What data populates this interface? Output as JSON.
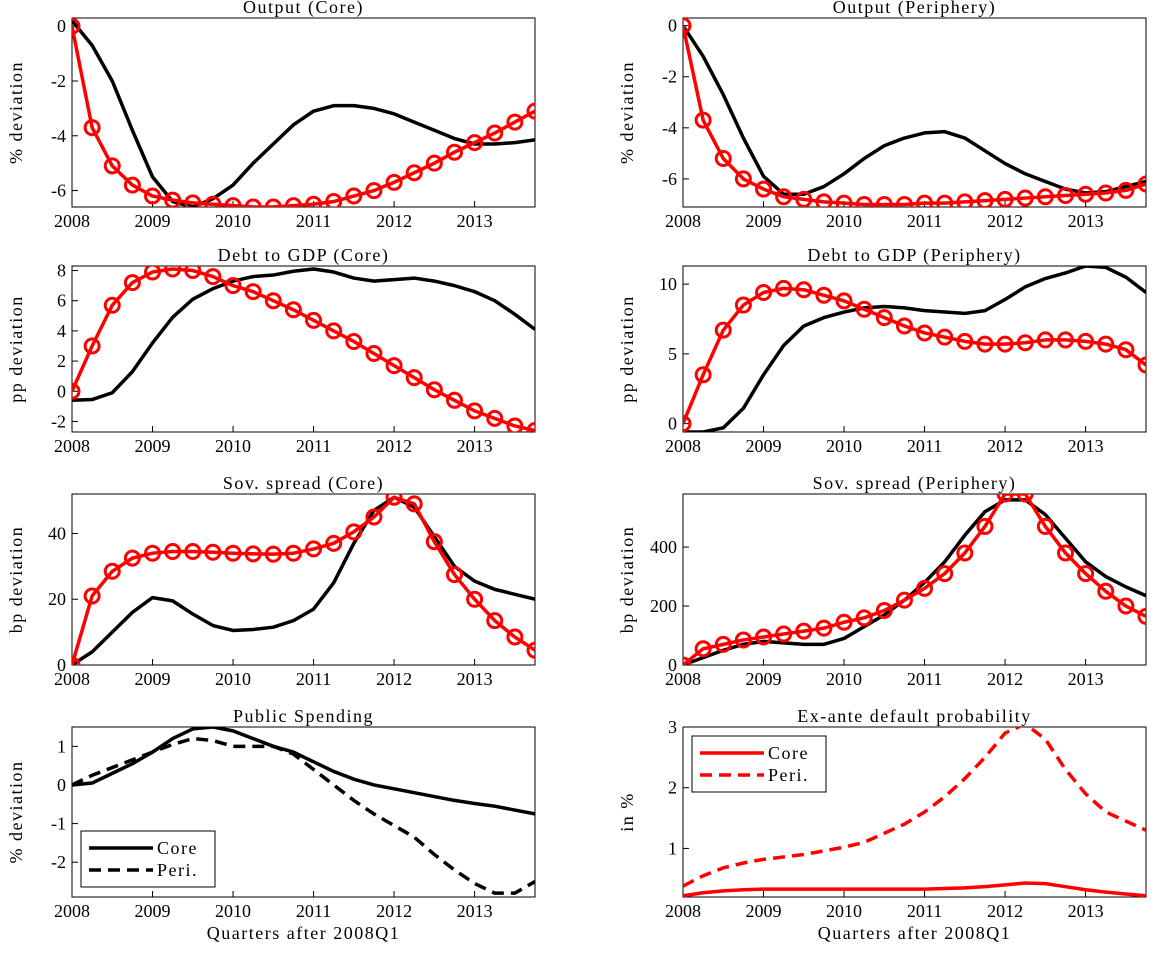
{
  "chart_data": [
    {
      "type": "line",
      "title": "Output (Core)",
      "ylabel": "% deviation",
      "x": [
        2008,
        2008.25,
        2008.5,
        2008.75,
        2009,
        2009.25,
        2009.5,
        2009.75,
        2010,
        2010.25,
        2010.5,
        2010.75,
        2011,
        2011.25,
        2011.5,
        2011.75,
        2012,
        2012.25,
        2012.5,
        2012.75,
        2013,
        2013.25,
        2013.5,
        2013.75
      ],
      "xlim": [
        2008,
        2013.75
      ],
      "xticks": [
        2008,
        2009,
        2010,
        2011,
        2012,
        2013
      ],
      "ylim": [
        -6.6,
        0.3
      ],
      "yticks": [
        -6,
        -4,
        -2,
        0
      ],
      "series": [
        {
          "color": "#000000",
          "values": [
            0.2,
            -0.7,
            -2.0,
            -3.8,
            -5.5,
            -6.4,
            -6.6,
            -6.3,
            -5.8,
            -5.0,
            -4.3,
            -3.6,
            -3.1,
            -2.9,
            -2.9,
            -3.0,
            -3.2,
            -3.5,
            -3.8,
            -4.1,
            -4.3,
            -4.3,
            -4.25,
            -4.15
          ]
        },
        {
          "color": "#ff0000",
          "marker": "o",
          "values": [
            0,
            -3.7,
            -5.1,
            -5.8,
            -6.2,
            -6.35,
            -6.45,
            -6.5,
            -6.55,
            -6.6,
            -6.6,
            -6.55,
            -6.5,
            -6.4,
            -6.2,
            -6.0,
            -5.7,
            -5.35,
            -5.0,
            -4.6,
            -4.25,
            -3.9,
            -3.5,
            -3.1
          ]
        }
      ]
    },
    {
      "type": "line",
      "title": "Output (Periphery)",
      "ylabel": "% deviation",
      "x": [
        2008,
        2008.25,
        2008.5,
        2008.75,
        2009,
        2009.25,
        2009.5,
        2009.75,
        2010,
        2010.25,
        2010.5,
        2010.75,
        2011,
        2011.25,
        2011.5,
        2011.75,
        2012,
        2012.25,
        2012.5,
        2012.75,
        2013,
        2013.25,
        2013.5,
        2013.75
      ],
      "xlim": [
        2008,
        2013.75
      ],
      "xticks": [
        2008,
        2009,
        2010,
        2011,
        2012,
        2013
      ],
      "ylim": [
        -7.1,
        0.3
      ],
      "yticks": [
        -6,
        -4,
        -2,
        0
      ],
      "series": [
        {
          "color": "#000000",
          "values": [
            0,
            -1.2,
            -2.7,
            -4.4,
            -5.9,
            -6.6,
            -6.6,
            -6.3,
            -5.8,
            -5.2,
            -4.7,
            -4.4,
            -4.2,
            -4.15,
            -4.4,
            -4.9,
            -5.4,
            -5.8,
            -6.1,
            -6.4,
            -6.55,
            -6.5,
            -6.3,
            -6.1
          ]
        },
        {
          "color": "#ff0000",
          "marker": "o",
          "values": [
            0,
            -3.7,
            -5.2,
            -6.0,
            -6.4,
            -6.7,
            -6.8,
            -6.9,
            -6.95,
            -7.0,
            -7.0,
            -7.0,
            -6.95,
            -6.95,
            -6.9,
            -6.85,
            -6.8,
            -6.75,
            -6.7,
            -6.65,
            -6.6,
            -6.55,
            -6.45,
            -6.2
          ]
        }
      ]
    },
    {
      "type": "line",
      "title": "Debt to GDP (Core)",
      "ylabel": "pp deviation",
      "x": [
        2008,
        2008.25,
        2008.5,
        2008.75,
        2009,
        2009.25,
        2009.5,
        2009.75,
        2010,
        2010.25,
        2010.5,
        2010.75,
        2011,
        2011.25,
        2011.5,
        2011.75,
        2012,
        2012.25,
        2012.5,
        2012.75,
        2013,
        2013.25,
        2013.5,
        2013.75
      ],
      "xlim": [
        2008,
        2013.75
      ],
      "xticks": [
        2008,
        2009,
        2010,
        2011,
        2012,
        2013
      ],
      "ylim": [
        -2.7,
        8.3
      ],
      "yticks": [
        -2,
        0,
        2,
        4,
        6,
        8
      ],
      "series": [
        {
          "color": "#000000",
          "values": [
            -0.6,
            -0.55,
            -0.1,
            1.3,
            3.2,
            4.9,
            6.1,
            6.8,
            7.3,
            7.6,
            7.7,
            7.95,
            8.1,
            7.9,
            7.5,
            7.3,
            7.4,
            7.5,
            7.3,
            7.0,
            6.6,
            6.0,
            5.1,
            4.1
          ]
        },
        {
          "color": "#ff0000",
          "marker": "o",
          "values": [
            0,
            3.0,
            5.7,
            7.2,
            7.9,
            8.1,
            8.0,
            7.6,
            7.0,
            6.6,
            6.0,
            5.4,
            4.7,
            4.0,
            3.3,
            2.5,
            1.7,
            0.9,
            0.1,
            -0.6,
            -1.3,
            -1.8,
            -2.3,
            -2.6
          ]
        }
      ]
    },
    {
      "type": "line",
      "title": "Debt to GDP (Periphery)",
      "ylabel": "pp deviation",
      "x": [
        2008,
        2008.25,
        2008.5,
        2008.75,
        2009,
        2009.25,
        2009.5,
        2009.75,
        2010,
        2010.25,
        2010.5,
        2010.75,
        2011,
        2011.25,
        2011.5,
        2011.75,
        2012,
        2012.25,
        2012.5,
        2012.75,
        2013,
        2013.25,
        2013.5,
        2013.75
      ],
      "xlim": [
        2008,
        2013.75
      ],
      "xticks": [
        2008,
        2009,
        2010,
        2011,
        2012,
        2013
      ],
      "ylim": [
        -0.6,
        11.3
      ],
      "yticks": [
        0,
        5,
        10
      ],
      "series": [
        {
          "color": "#000000",
          "values": [
            -0.6,
            -0.6,
            -0.3,
            1.1,
            3.5,
            5.6,
            7.0,
            7.6,
            8.0,
            8.3,
            8.4,
            8.3,
            8.1,
            8.0,
            7.9,
            8.1,
            8.9,
            9.8,
            10.4,
            10.8,
            11.3,
            11.2,
            10.5,
            9.4
          ]
        },
        {
          "color": "#ff0000",
          "marker": "o",
          "values": [
            0,
            3.5,
            6.7,
            8.5,
            9.4,
            9.7,
            9.6,
            9.2,
            8.8,
            8.2,
            7.6,
            7.0,
            6.5,
            6.2,
            5.9,
            5.7,
            5.7,
            5.8,
            6.0,
            6.0,
            5.9,
            5.7,
            5.3,
            4.2
          ]
        }
      ]
    },
    {
      "type": "line",
      "title": "Sov. spread (Core)",
      "ylabel": "bp deviation",
      "x": [
        2008,
        2008.25,
        2008.5,
        2008.75,
        2009,
        2009.25,
        2009.5,
        2009.75,
        2010,
        2010.25,
        2010.5,
        2010.75,
        2011,
        2011.25,
        2011.5,
        2011.75,
        2012,
        2012.25,
        2012.5,
        2012.75,
        2013,
        2013.25,
        2013.5,
        2013.75
      ],
      "xlim": [
        2008,
        2013.75
      ],
      "xticks": [
        2008,
        2009,
        2010,
        2011,
        2012,
        2013
      ],
      "ylim": [
        0,
        52
      ],
      "yticks": [
        0,
        20,
        40
      ],
      "series": [
        {
          "color": "#000000",
          "values": [
            0,
            4,
            10,
            16,
            20.5,
            19.5,
            15.5,
            12,
            10.5,
            10.8,
            11.5,
            13.5,
            17,
            25,
            37,
            47,
            51,
            48,
            39,
            30,
            25.5,
            23,
            21.5,
            20
          ]
        },
        {
          "color": "#ff0000",
          "marker": "o",
          "values": [
            0,
            21,
            28.5,
            32.5,
            34,
            34.5,
            34.5,
            34.3,
            34,
            33.8,
            33.7,
            34,
            35.3,
            37,
            40.5,
            45,
            51,
            49,
            37.5,
            27.5,
            20,
            13.5,
            8.5,
            4.5
          ]
        }
      ]
    },
    {
      "type": "line",
      "title": "Sov. spread (Periphery)",
      "ylabel": "bp deviation",
      "x": [
        2008,
        2008.25,
        2008.5,
        2008.75,
        2009,
        2009.25,
        2009.5,
        2009.75,
        2010,
        2010.25,
        2010.5,
        2010.75,
        2011,
        2011.25,
        2011.5,
        2011.75,
        2012,
        2012.25,
        2012.5,
        2012.75,
        2013,
        2013.25,
        2013.5,
        2013.75
      ],
      "xlim": [
        2008,
        2013.75
      ],
      "xticks": [
        2008,
        2009,
        2010,
        2011,
        2012,
        2013
      ],
      "ylim": [
        0,
        580
      ],
      "yticks": [
        0,
        200,
        400
      ],
      "series": [
        {
          "color": "#000000",
          "values": [
            0,
            25,
            50,
            70,
            80,
            75,
            70,
            70,
            90,
            130,
            170,
            220,
            280,
            350,
            440,
            520,
            560,
            560,
            510,
            430,
            350,
            300,
            265,
            235
          ]
        },
        {
          "color": "#ff0000",
          "marker": "o",
          "values": [
            0,
            55,
            70,
            85,
            95,
            105,
            115,
            125,
            145,
            160,
            185,
            220,
            260,
            310,
            380,
            470,
            580,
            580,
            470,
            380,
            310,
            250,
            200,
            165
          ]
        }
      ]
    },
    {
      "type": "line",
      "title": "Public Spending",
      "ylabel": "% deviation",
      "xlabel": "Quarters after 2008Q1",
      "x": [
        2008,
        2008.25,
        2008.5,
        2008.75,
        2009,
        2009.25,
        2009.5,
        2009.75,
        2010,
        2010.25,
        2010.5,
        2010.75,
        2011,
        2011.25,
        2011.5,
        2011.75,
        2012,
        2012.25,
        2012.5,
        2012.75,
        2013,
        2013.25,
        2013.5,
        2013.75
      ],
      "xlim": [
        2008,
        2013.75
      ],
      "xticks": [
        2008,
        2009,
        2010,
        2011,
        2012,
        2013
      ],
      "ylim": [
        -2.9,
        1.5
      ],
      "yticks": [
        -2,
        -1,
        0,
        1
      ],
      "legend": "lower left",
      "series": [
        {
          "name": "Core",
          "color": "#000000",
          "values": [
            0,
            0.05,
            0.3,
            0.55,
            0.85,
            1.2,
            1.45,
            1.5,
            1.4,
            1.2,
            1.0,
            0.85,
            0.6,
            0.35,
            0.15,
            0.0,
            -0.1,
            -0.2,
            -0.3,
            -0.4,
            -0.48,
            -0.55,
            -0.65,
            -0.75
          ]
        },
        {
          "name": "Peri.",
          "color": "#000000",
          "dashed": true,
          "values": [
            0,
            0.25,
            0.45,
            0.65,
            0.85,
            1.05,
            1.2,
            1.15,
            1.0,
            1.0,
            1.0,
            0.8,
            0.4,
            0.0,
            -0.4,
            -0.75,
            -1.05,
            -1.35,
            -1.8,
            -2.2,
            -2.55,
            -2.8,
            -2.8,
            -2.5
          ]
        }
      ]
    },
    {
      "type": "line",
      "title": "Ex-ante default probability",
      "ylabel": "in %",
      "xlabel": "Quarters after 2008Q1",
      "x": [
        2008,
        2008.25,
        2008.5,
        2008.75,
        2009,
        2009.25,
        2009.5,
        2009.75,
        2010,
        2010.25,
        2010.5,
        2010.75,
        2011,
        2011.25,
        2011.5,
        2011.75,
        2012,
        2012.25,
        2012.5,
        2012.75,
        2013,
        2013.25,
        2013.5,
        2013.75
      ],
      "xlim": [
        2008,
        2013.75
      ],
      "xticks": [
        2008,
        2009,
        2010,
        2011,
        2012,
        2013
      ],
      "ylim": [
        0.2,
        3
      ],
      "yticks": [
        1,
        2,
        3
      ],
      "legend": "upper left",
      "series": [
        {
          "name": "Core",
          "color": "#ff0000",
          "values": [
            0.22,
            0.27,
            0.3,
            0.32,
            0.33,
            0.33,
            0.33,
            0.33,
            0.33,
            0.33,
            0.33,
            0.33,
            0.33,
            0.34,
            0.35,
            0.37,
            0.4,
            0.43,
            0.42,
            0.37,
            0.32,
            0.28,
            0.25,
            0.22
          ]
        },
        {
          "name": "Peri.",
          "color": "#ff0000",
          "dashed": true,
          "values": [
            0.38,
            0.55,
            0.68,
            0.76,
            0.82,
            0.86,
            0.9,
            0.96,
            1.02,
            1.1,
            1.25,
            1.4,
            1.6,
            1.85,
            2.15,
            2.5,
            2.9,
            3.05,
            2.8,
            2.3,
            1.9,
            1.6,
            1.45,
            1.3
          ]
        }
      ]
    }
  ]
}
